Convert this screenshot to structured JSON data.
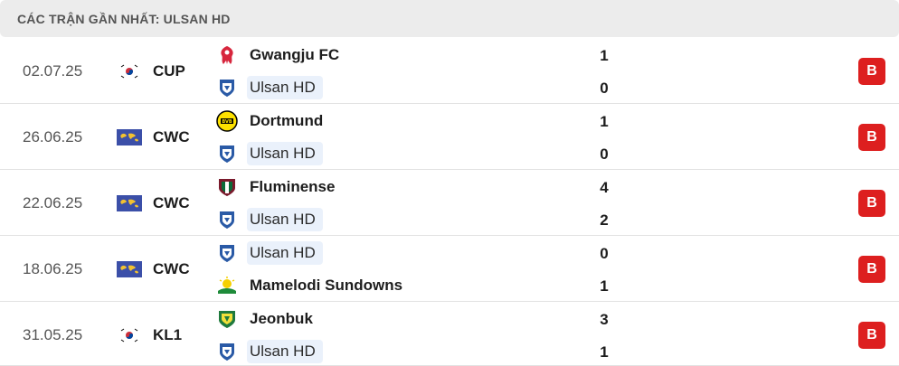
{
  "header": {
    "title": "CÁC TRẬN GẦN NHẤT: ULSAN HD"
  },
  "matches": [
    {
      "date": "02.07.25",
      "competition": "CUP",
      "competition_flag": "south-korea-flag",
      "home": {
        "name": "Gwangju FC",
        "logo": "gwangju-logo",
        "score": "1"
      },
      "away": {
        "name": "Ulsan HD",
        "logo": "ulsan-logo",
        "score": "0"
      },
      "result": "B"
    },
    {
      "date": "26.06.25",
      "competition": "CWC",
      "competition_flag": "world-flag",
      "home": {
        "name": "Dortmund",
        "logo": "dortmund-logo",
        "score": "1"
      },
      "away": {
        "name": "Ulsan HD",
        "logo": "ulsan-logo",
        "score": "0"
      },
      "result": "B"
    },
    {
      "date": "22.06.25",
      "competition": "CWC",
      "competition_flag": "world-flag",
      "home": {
        "name": "Fluminense",
        "logo": "fluminense-logo",
        "score": "4"
      },
      "away": {
        "name": "Ulsan HD",
        "logo": "ulsan-logo",
        "score": "2"
      },
      "result": "B"
    },
    {
      "date": "18.06.25",
      "competition": "CWC",
      "competition_flag": "world-flag",
      "home": {
        "name": "Ulsan HD",
        "logo": "ulsan-logo",
        "score": "0"
      },
      "away": {
        "name": "Mamelodi Sundowns",
        "logo": "sundowns-logo",
        "score": "1"
      },
      "result": "B"
    },
    {
      "date": "31.05.25",
      "competition": "KL1",
      "competition_flag": "south-korea-flag",
      "home": {
        "name": "Jeonbuk",
        "logo": "jeonbuk-logo",
        "score": "3"
      },
      "away": {
        "name": "Ulsan HD",
        "logo": "ulsan-logo",
        "score": "1"
      },
      "result": "B"
    }
  ],
  "colors": {
    "loss_badge": "#dd1f1f",
    "focus_team_bg": "#eaf1fb",
    "header_bg": "#ececec"
  }
}
